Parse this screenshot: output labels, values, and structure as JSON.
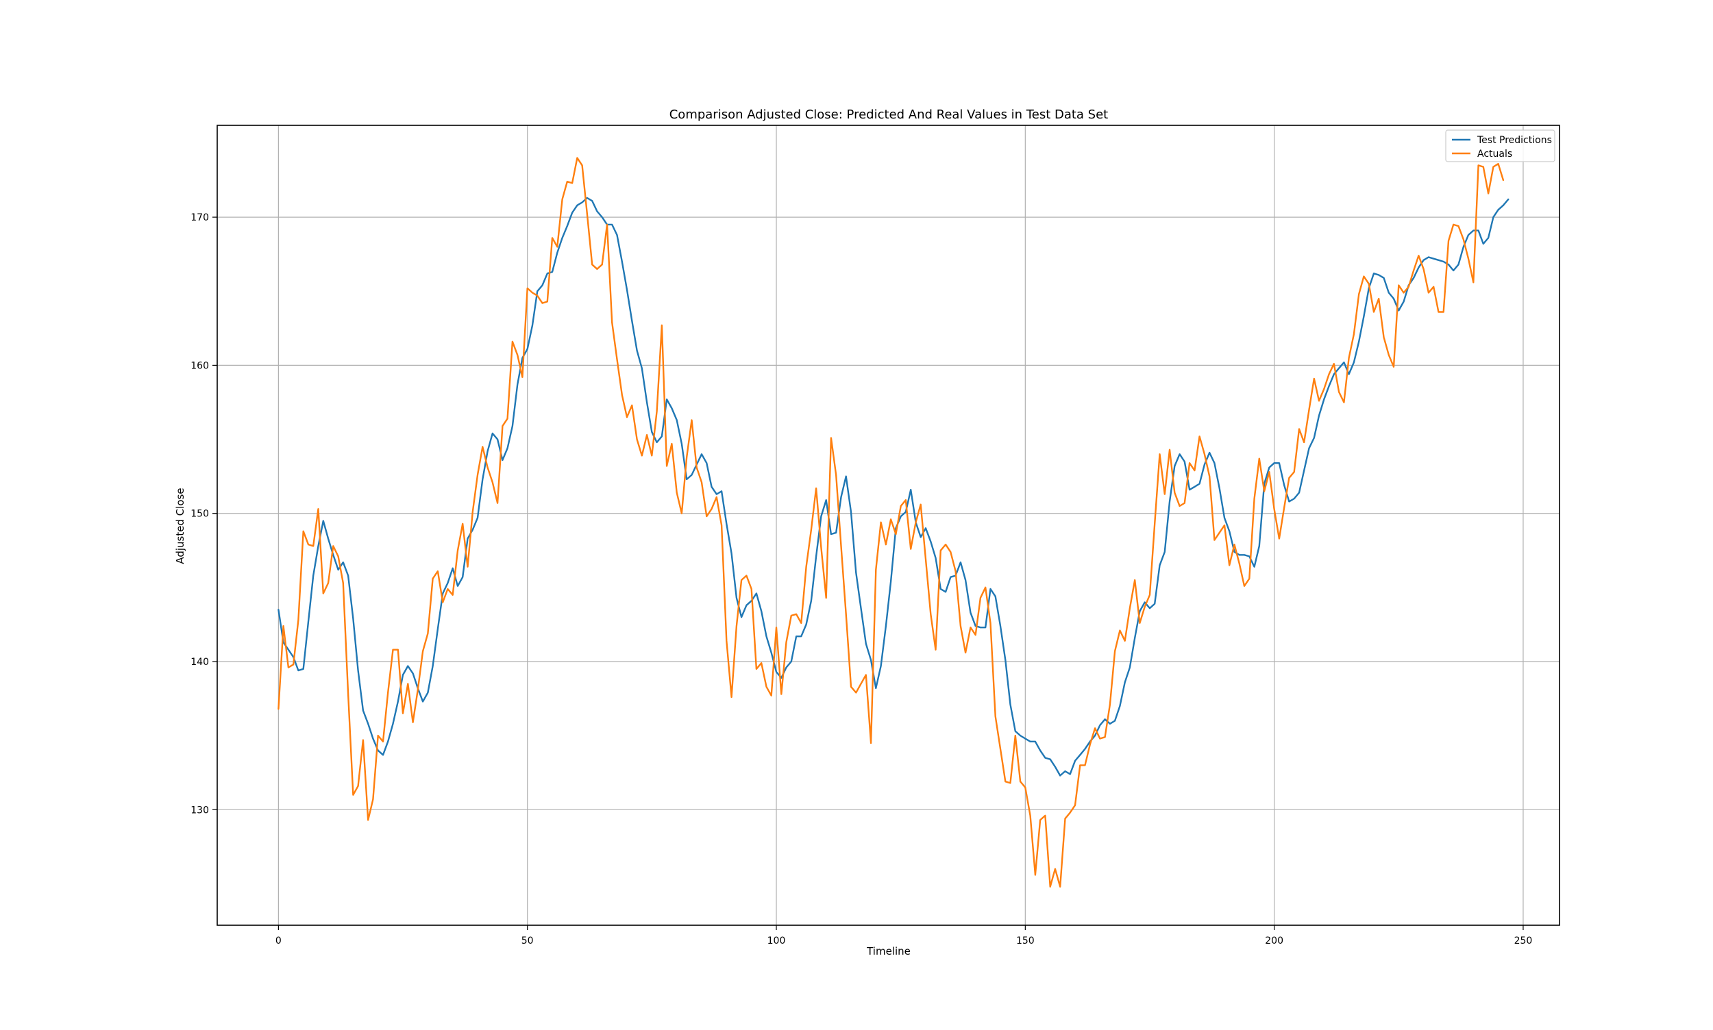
{
  "chart_data": {
    "type": "line",
    "title": "Comparison Adjusted Close: Predicted And Real Values in Test Data Set",
    "xlabel": "Timeline",
    "ylabel": "Adjusted Close",
    "xlim": [
      -12.3,
      257.3
    ],
    "ylim": [
      122.2,
      176.2
    ],
    "xticks": [
      0,
      50,
      100,
      150,
      200,
      250
    ],
    "yticks": [
      130,
      140,
      150,
      160,
      170
    ],
    "grid": true,
    "legend_position": "top-right",
    "series": [
      {
        "name": "Test Predictions",
        "color": "#1f77b4",
        "values": [
          143.5,
          141.3,
          140.8,
          140.3,
          139.4,
          139.5,
          142.7,
          145.8,
          147.8,
          149.5,
          148.3,
          147.2,
          146.2,
          146.7,
          145.8,
          142.9,
          139.4,
          136.7,
          135.8,
          134.8,
          134.0,
          133.7,
          134.6,
          135.8,
          137.3,
          139.1,
          139.7,
          139.2,
          138.2,
          137.3,
          137.9,
          139.7,
          142.2,
          144.6,
          145.3,
          146.3,
          145.1,
          145.7,
          148.3,
          148.9,
          149.7,
          152.3,
          154.2,
          155.4,
          155.0,
          153.6,
          154.4,
          155.9,
          158.7,
          160.5,
          161.1,
          162.7,
          165.0,
          165.4,
          166.2,
          166.3,
          167.6,
          168.6,
          169.4,
          170.3,
          170.8,
          171.0,
          171.3,
          171.1,
          170.4,
          170.0,
          169.5,
          169.5,
          168.8,
          167.0,
          165.1,
          163.0,
          161.0,
          159.8,
          157.5,
          155.5,
          154.8,
          155.2,
          157.7,
          157.1,
          156.3,
          154.7,
          152.3,
          152.6,
          153.3,
          154.0,
          153.4,
          151.8,
          151.3,
          151.5,
          149.3,
          147.3,
          144.3,
          143.0,
          143.8,
          144.1,
          144.6,
          143.4,
          141.7,
          140.6,
          139.3,
          138.9,
          139.6,
          140.0,
          141.7,
          141.7,
          142.5,
          144.1,
          147.1,
          149.8,
          150.9,
          148.6,
          148.7,
          151.1,
          152.5,
          150.1,
          146.0,
          143.6,
          141.2,
          140.1,
          138.2,
          139.7,
          142.4,
          145.4,
          149.0,
          149.8,
          150.1,
          151.6,
          149.4,
          148.4,
          149.0,
          148.1,
          147.0,
          144.9,
          144.7,
          145.7,
          145.8,
          146.7,
          145.5,
          143.3,
          142.4,
          142.3,
          142.3,
          144.9,
          144.4,
          142.4,
          140.1,
          137.1,
          135.3,
          135.0,
          134.8,
          134.6,
          134.6,
          134.0,
          133.5,
          133.4,
          132.9,
          132.3,
          132.6,
          132.4,
          133.3,
          133.7,
          134.1,
          134.6,
          135.0,
          135.7,
          136.1,
          135.8,
          136.0,
          137.0,
          138.6,
          139.6,
          141.6,
          143.4,
          144.0,
          143.6,
          143.9,
          146.5,
          147.4,
          150.8,
          153.2,
          154.0,
          153.5,
          151.6,
          151.8,
          152.0,
          153.3,
          154.1,
          153.4,
          151.7,
          149.7,
          148.8,
          147.4,
          147.2,
          147.2,
          147.1,
          146.4,
          147.8,
          152.0,
          153.1,
          153.4,
          153.4,
          151.9,
          150.8,
          151.0,
          151.4,
          152.9,
          154.4,
          155.1,
          156.6,
          157.7,
          158.6,
          159.4,
          159.8,
          160.2,
          159.4,
          160.2,
          161.6,
          163.3,
          165.2,
          166.2,
          166.1,
          165.9,
          164.9,
          164.5,
          163.7,
          164.3,
          165.4,
          165.9,
          166.6,
          167.1,
          167.3,
          167.2,
          167.1,
          167.0,
          166.8,
          166.4,
          166.8,
          168.0,
          168.8,
          169.1,
          169.1,
          168.2,
          168.6,
          170.0,
          170.5,
          170.8,
          171.2
        ]
      },
      {
        "name": "Actuals",
        "color": "#ff7f0e",
        "values": [
          136.8,
          142.4,
          139.6,
          139.8,
          142.8,
          148.8,
          147.9,
          147.8,
          150.3,
          144.6,
          145.3,
          147.8,
          147.1,
          145.3,
          137.8,
          131.0,
          131.6,
          134.7,
          129.3,
          130.7,
          135.0,
          134.6,
          137.9,
          140.8,
          140.8,
          136.5,
          138.5,
          135.9,
          138.1,
          140.7,
          141.9,
          145.6,
          146.1,
          144.0,
          144.9,
          144.5,
          147.5,
          149.3,
          146.4,
          150.1,
          152.6,
          154.5,
          153.1,
          152.1,
          150.7,
          155.9,
          156.4,
          161.6,
          160.7,
          159.2,
          165.2,
          164.9,
          164.7,
          164.2,
          164.3,
          168.6,
          168.0,
          171.2,
          172.4,
          172.3,
          174.0,
          173.5,
          170.2,
          166.8,
          166.5,
          166.8,
          169.5,
          162.9,
          160.4,
          158.0,
          156.5,
          157.3,
          155.0,
          153.9,
          155.3,
          153.9,
          156.9,
          162.7,
          153.2,
          154.7,
          151.4,
          150.0,
          153.8,
          156.3,
          153.1,
          152.1,
          149.8,
          150.3,
          151.1,
          149.2,
          141.4,
          137.6,
          142.4,
          145.5,
          145.8,
          144.9,
          139.5,
          139.9,
          138.3,
          137.7,
          142.3,
          137.8,
          141.3,
          143.1,
          143.2,
          142.6,
          146.4,
          148.9,
          151.7,
          147.7,
          144.3,
          155.1,
          152.6,
          147.8,
          143.2,
          138.3,
          137.9,
          138.5,
          139.1,
          134.5,
          146.2,
          149.4,
          147.9,
          149.6,
          148.6,
          150.5,
          150.9,
          147.6,
          149.4,
          150.6,
          146.9,
          143.2,
          140.8,
          147.5,
          147.9,
          147.4,
          146.1,
          142.4,
          140.6,
          142.3,
          141.8,
          144.3,
          145.0,
          142.6,
          136.3,
          134.1,
          131.9,
          131.8,
          135.0,
          131.9,
          131.5,
          129.6,
          125.6,
          129.3,
          129.6,
          124.8,
          126.0,
          124.8,
          129.4,
          129.8,
          130.3,
          133.0,
          133.0,
          134.4,
          135.5,
          134.8,
          134.9,
          137.1,
          140.7,
          142.1,
          141.4,
          143.6,
          145.5,
          142.6,
          143.7,
          144.5,
          149.3,
          154.0,
          151.3,
          154.3,
          151.4,
          150.5,
          150.7,
          153.4,
          152.9,
          155.2,
          154.0,
          152.5,
          148.2,
          148.7,
          149.2,
          146.5,
          147.9,
          146.6,
          145.1,
          145.6,
          151.0,
          153.7,
          151.5,
          152.8,
          150.3,
          148.3,
          150.4,
          152.4,
          152.8,
          155.7,
          154.8,
          157.0,
          159.1,
          157.6,
          158.4,
          159.4,
          160.1,
          158.2,
          157.5,
          160.5,
          162.1,
          164.8,
          166.0,
          165.5,
          163.6,
          164.5,
          161.9,
          160.7,
          159.9,
          165.4,
          164.9,
          165.3,
          166.4,
          167.4,
          166.5,
          164.9,
          165.3,
          163.6,
          163.6,
          168.4,
          169.5,
          169.4,
          168.5,
          167.2,
          165.6,
          173.5,
          173.4,
          171.6,
          173.4,
          173.6,
          172.5
        ]
      }
    ]
  }
}
